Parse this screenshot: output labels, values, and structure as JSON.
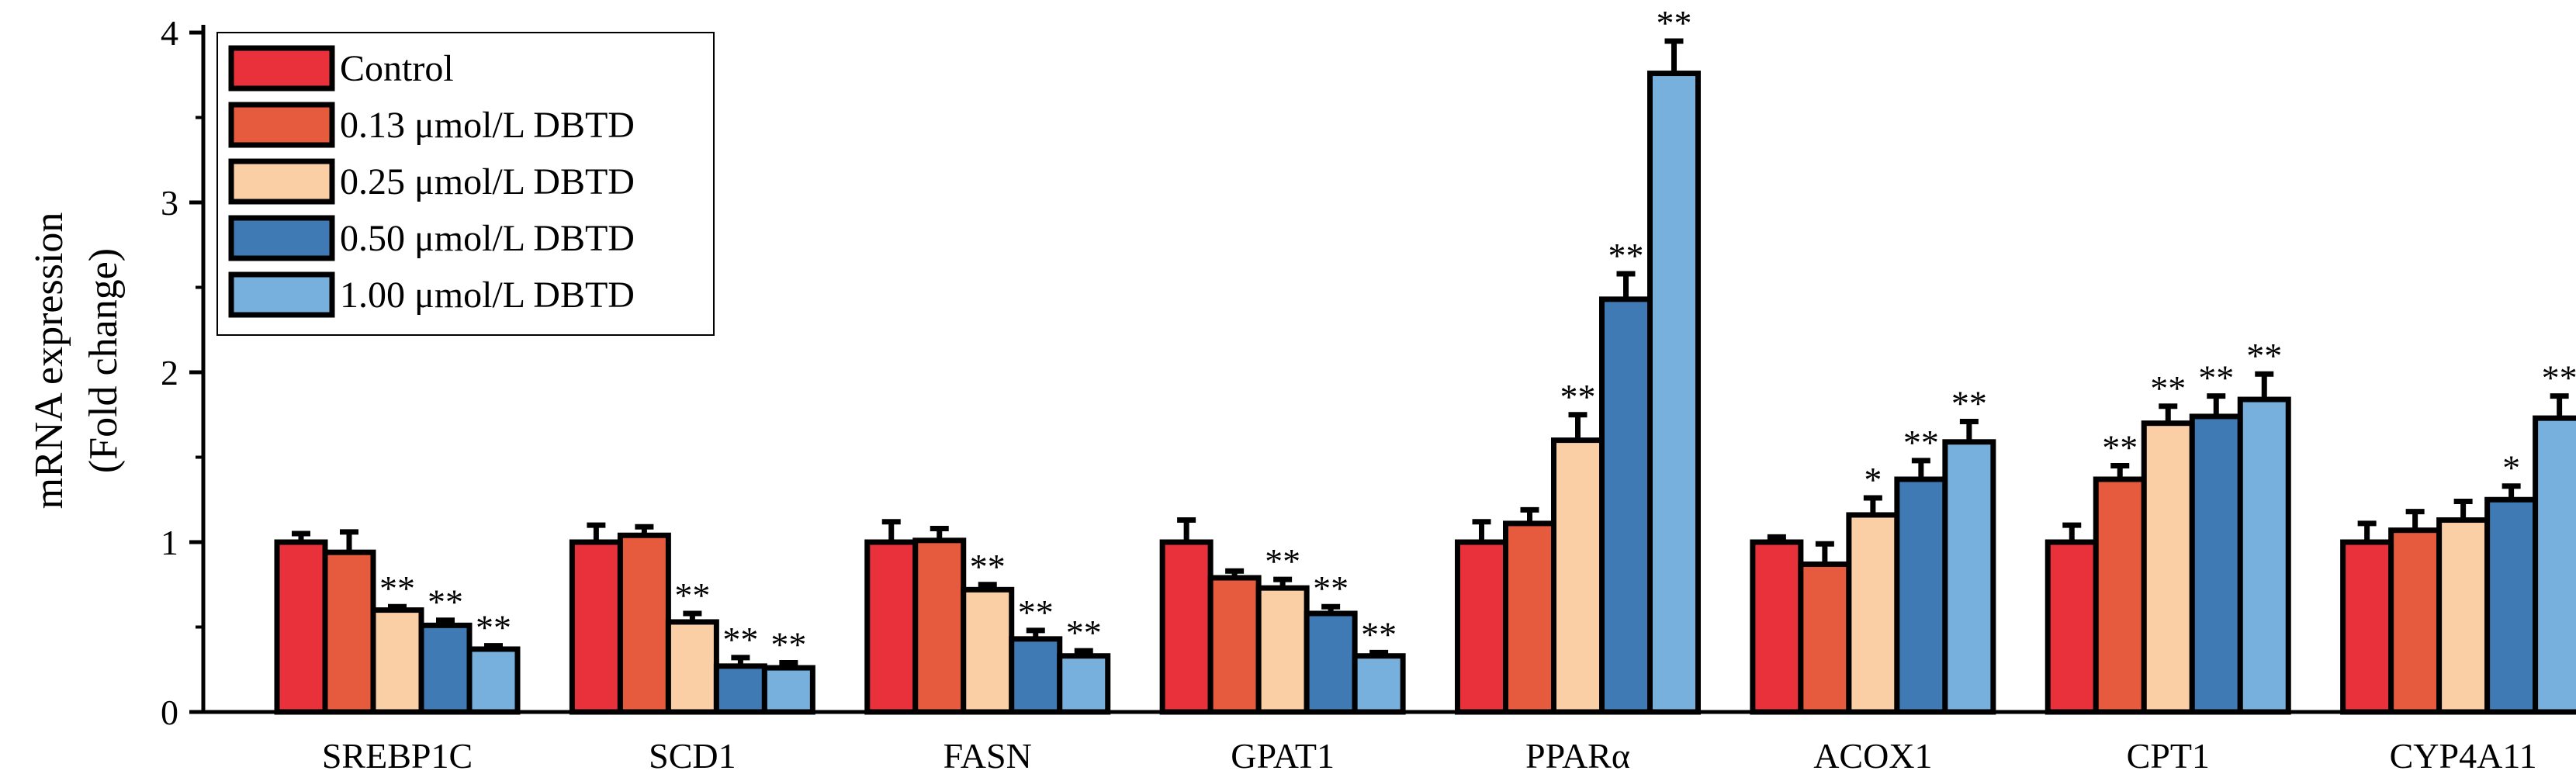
{
  "chart_data": {
    "type": "bar",
    "categories": [
      "SREBP1C",
      "SCD1",
      "FASN",
      "GPAT1",
      "PPARα",
      "ACOX1",
      "CPT1",
      "CYP4A11"
    ],
    "series": [
      {
        "name": "Control",
        "color": "#e8313a",
        "values": [
          1.0,
          1.0,
          1.0,
          1.0,
          1.0,
          1.0,
          1.0,
          1.0
        ],
        "errors": [
          0.05,
          0.1,
          0.12,
          0.13,
          0.12,
          0.03,
          0.1,
          0.11
        ],
        "sig": [
          "",
          "",
          "",
          "",
          "",
          "",
          "",
          ""
        ]
      },
      {
        "name": "0.13 μmol/L DBTD",
        "color": "#e65a3e",
        "values": [
          0.94,
          1.04,
          1.01,
          0.79,
          1.11,
          0.87,
          1.37,
          1.07
        ],
        "errors": [
          0.12,
          0.05,
          0.07,
          0.04,
          0.08,
          0.12,
          0.08,
          0.11
        ],
        "sig": [
          "",
          "",
          "",
          "",
          "",
          "",
          "**",
          ""
        ]
      },
      {
        "name": "0.25 μmol/L DBTD",
        "color": "#fbcfa6",
        "values": [
          0.6,
          0.53,
          0.72,
          0.73,
          1.6,
          1.16,
          1.7,
          1.13
        ],
        "errors": [
          0.02,
          0.05,
          0.03,
          0.05,
          0.15,
          0.1,
          0.1,
          0.11
        ],
        "sig": [
          "**",
          "**",
          "**",
          "**",
          "**",
          "*",
          "**",
          ""
        ]
      },
      {
        "name": "0.50 μmol/L DBTD",
        "color": "#3f7ab5",
        "values": [
          0.51,
          0.27,
          0.43,
          0.58,
          2.43,
          1.37,
          1.74,
          1.25
        ],
        "errors": [
          0.03,
          0.05,
          0.05,
          0.04,
          0.15,
          0.11,
          0.12,
          0.08
        ],
        "sig": [
          "**",
          "**",
          "**",
          "**",
          "**",
          "**",
          "**",
          "*"
        ]
      },
      {
        "name": "1.00 μmol/L DBTD",
        "color": "#78b0dd",
        "values": [
          0.37,
          0.26,
          0.33,
          0.33,
          3.76,
          1.59,
          1.84,
          1.73
        ],
        "errors": [
          0.02,
          0.03,
          0.03,
          0.02,
          0.19,
          0.12,
          0.15,
          0.13
        ],
        "sig": [
          "**",
          "**",
          "**",
          "**",
          "**",
          "**",
          "**",
          "**"
        ]
      }
    ],
    "ylabel_lines": [
      "mRNA expression",
      "(Fold change)"
    ],
    "xlabel": "",
    "ylim": [
      0,
      4
    ],
    "yticks": [
      "0",
      "1",
      "2",
      "3",
      "4"
    ],
    "legend_position": "top-left",
    "grid": false
  }
}
